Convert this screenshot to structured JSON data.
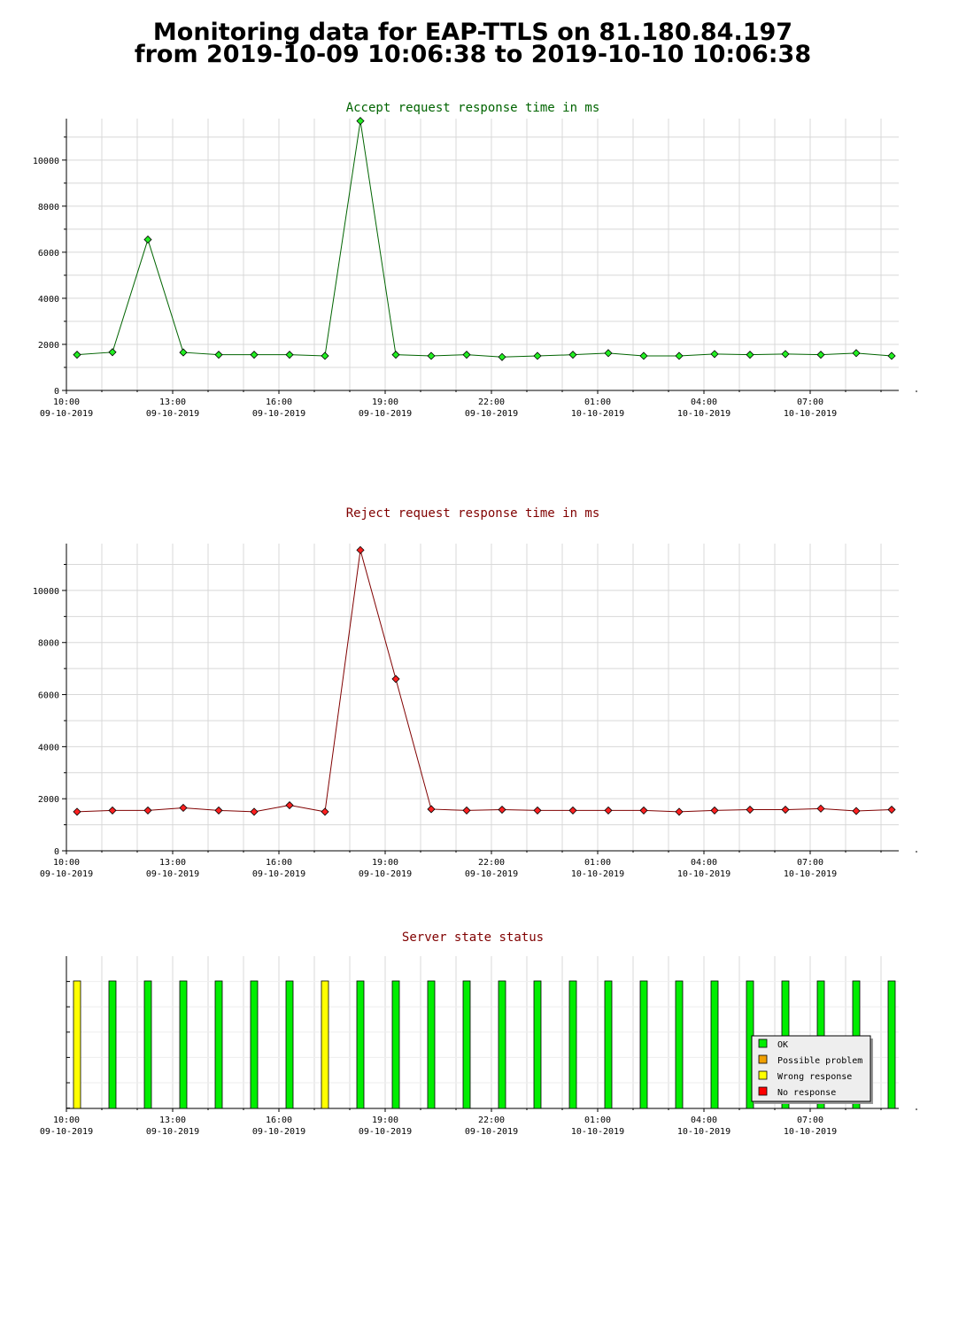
{
  "page": {
    "title_line1": "Monitoring data for EAP-TTLS on 81.180.84.197",
    "title_line2": "from 2019-10-09 10:06:38 to 2019-10-10 10:06:38"
  },
  "colors": {
    "accept": "#006400",
    "reject": "#800000",
    "ok": "#00ee00",
    "possible_problem": "#f0a000",
    "wrong_response": "#ffff00",
    "no_response": "#ff0000",
    "grid": "#d8d8d8"
  },
  "x_ticks": [
    {
      "time": "10:00",
      "date": "09-10-2019"
    },
    {
      "time": "13:00",
      "date": "09-10-2019"
    },
    {
      "time": "16:00",
      "date": "09-10-2019"
    },
    {
      "time": "19:00",
      "date": "09-10-2019"
    },
    {
      "time": "22:00",
      "date": "09-10-2019"
    },
    {
      "time": "01:00",
      "date": "10-10-2019"
    },
    {
      "time": "04:00",
      "date": "10-10-2019"
    },
    {
      "time": "07:00",
      "date": "10-10-2019"
    }
  ],
  "chart_data": [
    {
      "type": "line",
      "title": "Accept request response time in ms",
      "ylim": [
        0,
        11800
      ],
      "yticks": [
        0,
        2000,
        4000,
        6000,
        8000,
        10000
      ],
      "x": [
        "10:18",
        "11:18",
        "12:18",
        "13:18",
        "14:18",
        "15:18",
        "16:18",
        "17:18",
        "18:18",
        "19:18",
        "20:18",
        "21:18",
        "22:18",
        "23:18",
        "00:18",
        "01:18",
        "02:18",
        "03:18",
        "04:18",
        "05:18",
        "06:18",
        "07:18",
        "08:18",
        "09:18"
      ],
      "values": [
        1550,
        1660,
        6550,
        1650,
        1550,
        1550,
        1550,
        1500,
        11700,
        1550,
        1500,
        1550,
        1450,
        1500,
        1550,
        1620,
        1500,
        1500,
        1580,
        1550,
        1580,
        1550,
        1620,
        1500
      ],
      "grid": true
    },
    {
      "type": "line",
      "title": "Reject request response time in ms",
      "ylim": [
        0,
        11800
      ],
      "yticks": [
        0,
        2000,
        4000,
        6000,
        8000,
        10000
      ],
      "x": [
        "10:18",
        "11:18",
        "12:18",
        "13:18",
        "14:18",
        "15:18",
        "16:18",
        "17:18",
        "18:18",
        "19:18",
        "20:18",
        "21:18",
        "22:18",
        "23:18",
        "00:18",
        "01:18",
        "02:18",
        "03:18",
        "04:18",
        "05:18",
        "06:18",
        "07:18",
        "08:18",
        "09:18"
      ],
      "values": [
        1500,
        1550,
        1550,
        1650,
        1550,
        1500,
        1750,
        1500,
        11550,
        6600,
        1600,
        1550,
        1580,
        1550,
        1550,
        1550,
        1550,
        1500,
        1550,
        1580,
        1580,
        1620,
        1530,
        1580
      ],
      "grid": true
    },
    {
      "type": "bar",
      "title": "Server state status",
      "x": [
        "10:18",
        "11:18",
        "12:18",
        "13:18",
        "14:18",
        "15:18",
        "16:18",
        "17:18",
        "18:18",
        "19:18",
        "20:18",
        "21:18",
        "22:18",
        "23:18",
        "00:18",
        "01:18",
        "02:18",
        "03:18",
        "04:18",
        "05:18",
        "06:18",
        "07:18",
        "08:18",
        "09:18"
      ],
      "states": [
        "wrong_response",
        "ok",
        "ok",
        "ok",
        "ok",
        "ok",
        "ok",
        "wrong_response",
        "ok",
        "ok",
        "ok",
        "ok",
        "ok",
        "ok",
        "ok",
        "ok",
        "ok",
        "ok",
        "ok",
        "ok",
        "ok",
        "ok",
        "ok",
        "ok"
      ],
      "legend": [
        {
          "key": "ok",
          "label": "OK"
        },
        {
          "key": "possible_problem",
          "label": "Possible problem"
        },
        {
          "key": "wrong_response",
          "label": "Wrong response"
        },
        {
          "key": "no_response",
          "label": "No response"
        }
      ],
      "legend_position": "bottom-right"
    }
  ]
}
